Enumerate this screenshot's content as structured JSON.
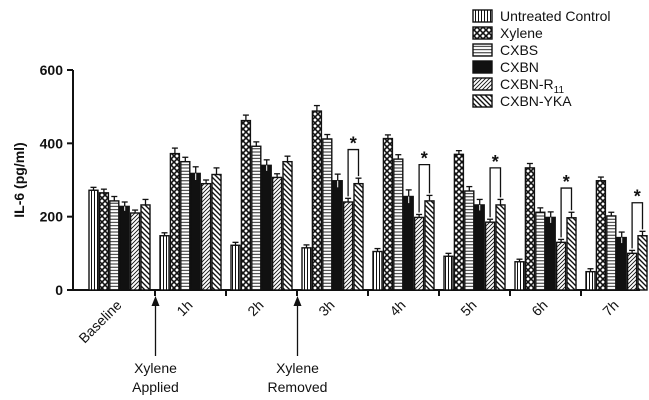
{
  "chart_data": {
    "type": "bar",
    "ylabel": "IL-6 (pg/ml)",
    "xlabel": "",
    "ylim": [
      0,
      600
    ],
    "yticks": [
      0,
      200,
      400,
      600
    ],
    "grid": false,
    "legend_position": "top-right",
    "categories": [
      "Baseline",
      "1h",
      "2h",
      "3h",
      "4h",
      "5h",
      "6h",
      "7h"
    ],
    "series": [
      {
        "name": "Untreated Control",
        "pattern": "vlines",
        "values": [
          272,
          148,
          122,
          115,
          105,
          92,
          77,
          50
        ],
        "errors": [
          8,
          8,
          8,
          8,
          8,
          8,
          7,
          8
        ]
      },
      {
        "name": "Xylene",
        "pattern": "crosshatch",
        "values": [
          265,
          372,
          462,
          488,
          413,
          370,
          333,
          298
        ],
        "errors": [
          10,
          15,
          15,
          15,
          10,
          10,
          12,
          10
        ]
      },
      {
        "name": "CXBS",
        "pattern": "hlines",
        "values": [
          243,
          350,
          392,
          412,
          357,
          270,
          212,
          202
        ],
        "errors": [
          12,
          12,
          12,
          12,
          12,
          12,
          12,
          10
        ]
      },
      {
        "name": "CXBN",
        "pattern": "solid",
        "values": [
          228,
          318,
          340,
          298,
          255,
          232,
          198,
          143
        ],
        "errors": [
          12,
          18,
          15,
          18,
          18,
          15,
          15,
          15
        ]
      },
      {
        "name": "CXBN-R11",
        "pattern": "diag-right",
        "values": [
          210,
          290,
          307,
          240,
          198,
          185,
          130,
          100
        ],
        "errors": [
          8,
          10,
          10,
          10,
          8,
          8,
          8,
          8
        ]
      },
      {
        "name": "CXBN-YKA",
        "pattern": "diag-left",
        "values": [
          232,
          315,
          350,
          290,
          243,
          232,
          197,
          148
        ],
        "errors": [
          15,
          18,
          15,
          15,
          15,
          15,
          15,
          12
        ]
      }
    ],
    "annotations": [
      {
        "text": "*",
        "category": "3h"
      },
      {
        "text": "*",
        "category": "4h"
      },
      {
        "text": "*",
        "category": "5h"
      },
      {
        "text": "*",
        "category": "6h"
      },
      {
        "text": "*",
        "category": "7h"
      }
    ],
    "significance_brackets": [
      {
        "category": "3h",
        "top_value": 383
      },
      {
        "category": "4h",
        "top_value": 342
      },
      {
        "category": "5h",
        "top_value": 333
      },
      {
        "category": "6h",
        "top_value": 278
      },
      {
        "category": "7h",
        "top_value": 238
      }
    ],
    "events": [
      {
        "lines": [
          "Xylene",
          "Applied"
        ],
        "after_category": "Baseline"
      },
      {
        "lines": [
          "Xylene",
          "Removed"
        ],
        "after_category": "2h"
      }
    ]
  }
}
